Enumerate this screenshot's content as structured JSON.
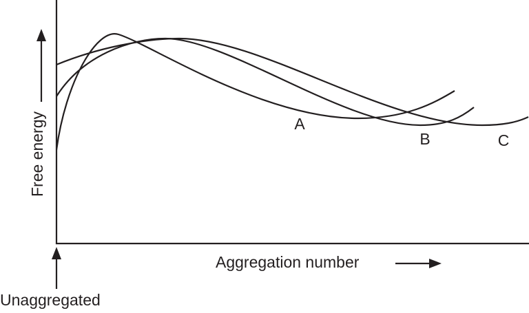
{
  "y_axis_label": "Free energy",
  "x_axis_label": "Aggregation number",
  "origin_label": "Unaggregated",
  "curves": [
    {
      "label": "A"
    },
    {
      "label": "B"
    },
    {
      "label": "C"
    }
  ]
}
